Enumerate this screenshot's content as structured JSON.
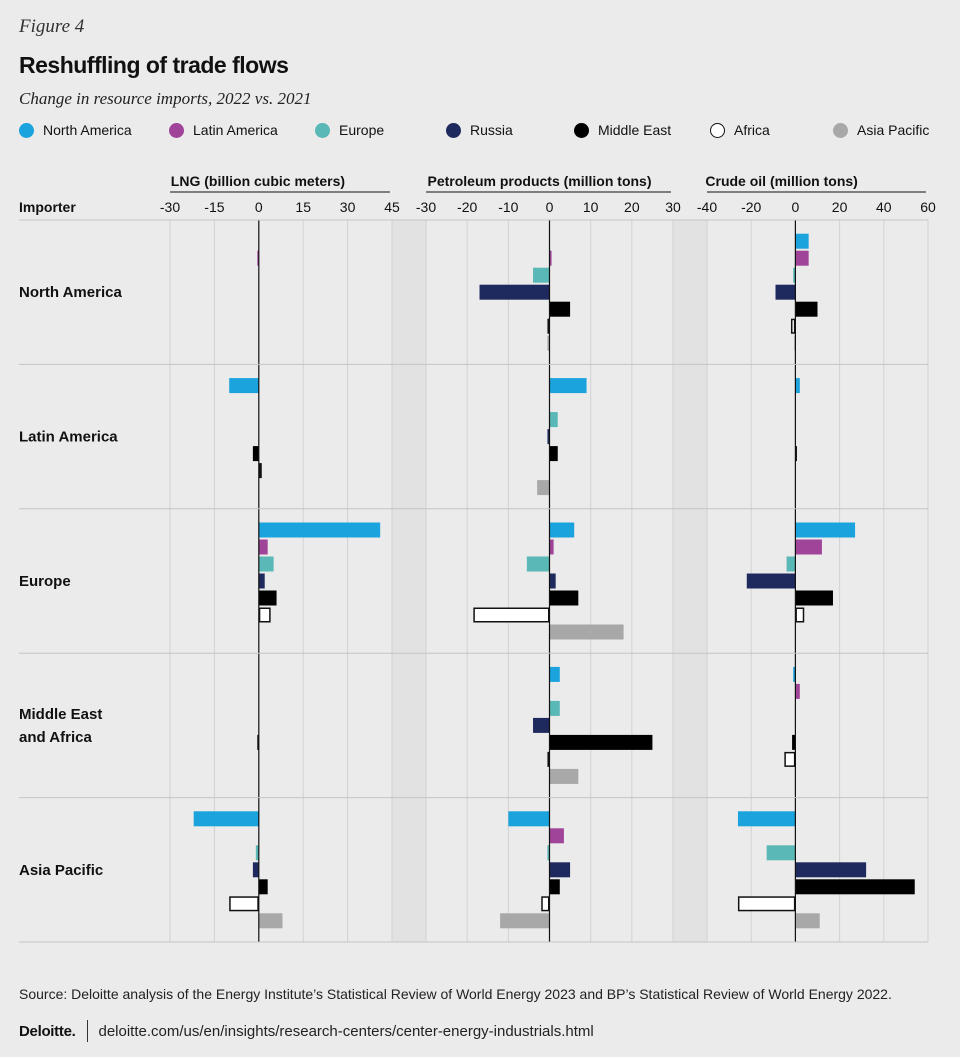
{
  "figure_label": "Figure 4",
  "title": "Reshuffling of trade flows",
  "subtitle": "Change in resource imports, 2022 vs. 2021",
  "legend": [
    {
      "name": "North America",
      "color": "#1ba3dd"
    },
    {
      "name": "Latin America",
      "color": "#a0449a"
    },
    {
      "name": "Europe",
      "color": "#5ab8b6"
    },
    {
      "name": "Russia",
      "color": "#1e2a5e"
    },
    {
      "name": "Middle East",
      "color": "#000000"
    },
    {
      "name": "Africa",
      "color": "#ffffff"
    },
    {
      "name": "Asia Pacific",
      "color": "#a8a8a8"
    }
  ],
  "chart_data": {
    "type": "bar",
    "orientation": "horizontal",
    "importer_label": "Importer",
    "importers": [
      "North America",
      "Latin America",
      "Europe",
      "Middle East and Africa",
      "Asia Pacific"
    ],
    "importer_labels": [
      [
        "North America"
      ],
      [
        "Latin America"
      ],
      [
        "Europe"
      ],
      [
        "Middle East",
        "and Africa"
      ],
      [
        "Asia Pacific"
      ]
    ],
    "exporters": [
      "North America",
      "Latin America",
      "Europe",
      "Russia",
      "Middle East",
      "Africa",
      "Asia Pacific"
    ],
    "panels": [
      {
        "title": "LNG (billion cubic meters)",
        "ticks": [
          -30,
          -15,
          0,
          15,
          30,
          45
        ],
        "xlim": [
          -30,
          45
        ],
        "values": [
          [
            0,
            -0.5,
            0,
            0,
            0,
            0,
            0
          ],
          [
            -10,
            0,
            0,
            0,
            -2,
            1,
            0
          ],
          [
            41,
            3,
            5,
            2,
            6,
            4,
            0
          ],
          [
            0,
            0,
            0,
            0,
            -0.5,
            0,
            0
          ],
          [
            -22,
            0,
            -1,
            -2,
            3,
            -10,
            8
          ]
        ]
      },
      {
        "title": "Petroleum products (million tons)",
        "ticks": [
          -30,
          -20,
          -10,
          0,
          10,
          20,
          30
        ],
        "xlim": [
          -30,
          30
        ],
        "values": [
          [
            0,
            0.5,
            -4,
            -17,
            5,
            -0.5,
            -0.5
          ],
          [
            9,
            0,
            2,
            -0.5,
            2,
            0,
            -3
          ],
          [
            6,
            1,
            -5.5,
            1.5,
            7,
            -18.5,
            18
          ],
          [
            2.5,
            0,
            2.5,
            -4,
            25,
            -0.5,
            7
          ],
          [
            -10,
            3.5,
            -0.5,
            5,
            2.5,
            -2,
            -12
          ]
        ]
      },
      {
        "title": "Crude oil (million tons)",
        "ticks": [
          -40,
          -20,
          0,
          20,
          40,
          60
        ],
        "xlim": [
          -40,
          60
        ],
        "values": [
          [
            6,
            6,
            -1,
            -9,
            10,
            -2,
            -0.5
          ],
          [
            2,
            0,
            0,
            0,
            0.5,
            0,
            0
          ],
          [
            27,
            12,
            -4,
            -22,
            17,
            4,
            0
          ],
          [
            -1,
            2,
            0,
            0,
            -1.5,
            -5,
            0
          ],
          [
            -26,
            0,
            -13,
            32,
            54,
            -26,
            11
          ]
        ]
      }
    ]
  },
  "source": "Source: Deloitte analysis of the Energy Institute’s Statistical Review of World Energy 2023 and BP’s Statistical Review of World Energy 2022.",
  "footer": {
    "logo": "Deloitte",
    "logo_dot": ".",
    "url": "deloitte.com/us/en/insights/research-centers/center-energy-industrials.html"
  }
}
